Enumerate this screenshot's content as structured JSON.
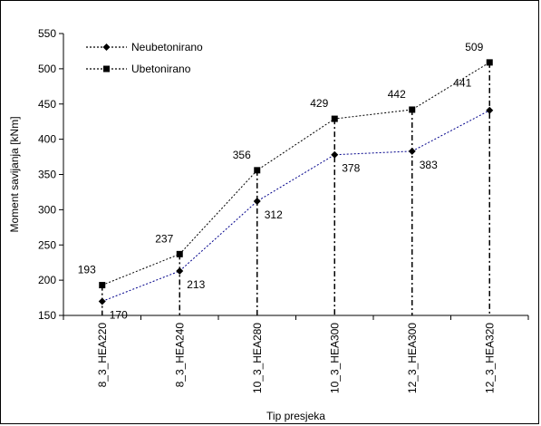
{
  "chart_data": {
    "type": "line",
    "xlabel": "Tip presjeka",
    "ylabel": "Moment savijanja [kNm]",
    "ylim": [
      150,
      550
    ],
    "yticks": [
      "150",
      "200",
      "250",
      "300",
      "350",
      "400",
      "450",
      "500",
      "550"
    ],
    "categories": [
      "8_3_HEA220",
      "8_3_HEA240",
      "10_3_HEA280",
      "10_3_HEA300",
      "12_3_HEA300",
      "12_3_HEA320"
    ],
    "series": [
      {
        "name": "Neubetonirano",
        "values": [
          170,
          213,
          312,
          378,
          383,
          441
        ],
        "labels": [
          "170",
          "213",
          "312",
          "378",
          "383",
          "441"
        ],
        "color": "#00008b",
        "marker": "diamond"
      },
      {
        "name": "Ubetonirano",
        "values": [
          193,
          237,
          356,
          429,
          442,
          509
        ],
        "labels": [
          "193",
          "237",
          "356",
          "429",
          "442",
          "509"
        ],
        "color": "#000000",
        "marker": "square"
      }
    ],
    "grid": false,
    "legend": "top-left"
  }
}
